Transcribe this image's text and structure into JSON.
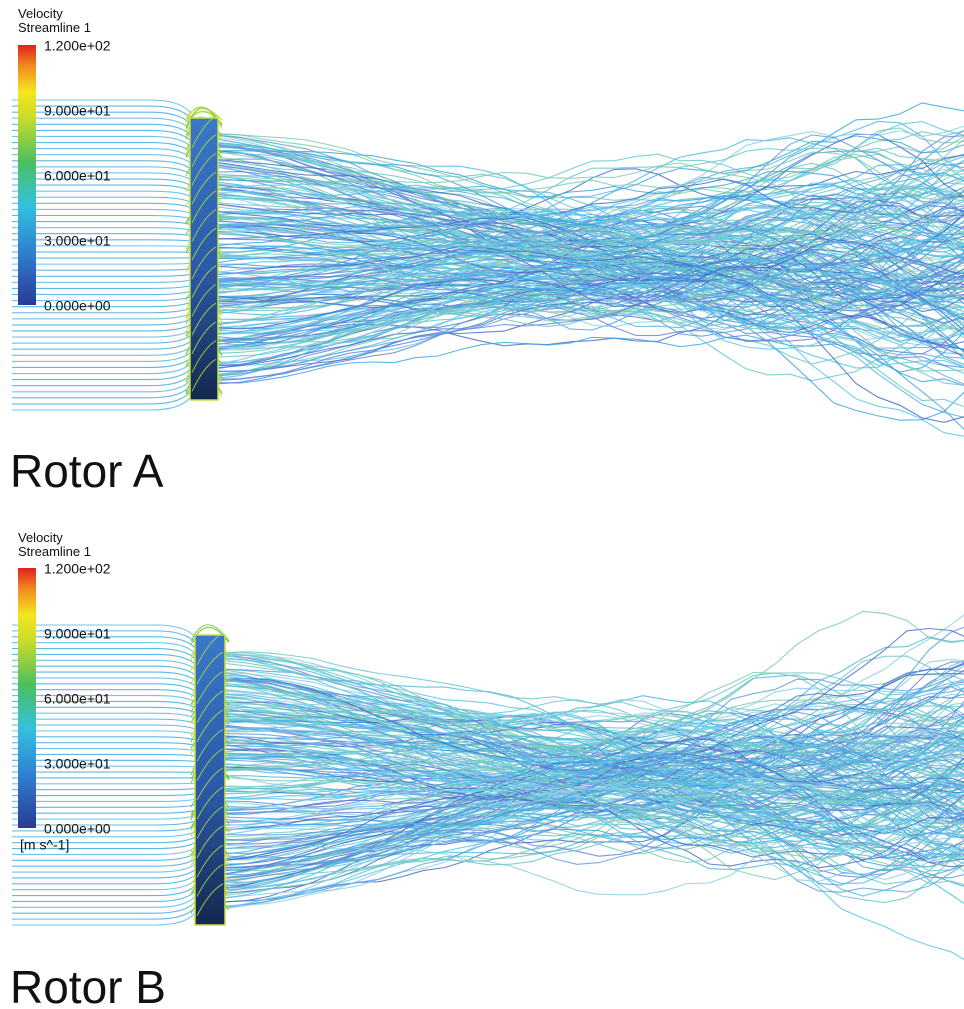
{
  "panels": [
    {
      "legend": {
        "title": "Velocity",
        "subtitle": "Streamline 1",
        "ticks": [
          "1.200e+02",
          "9.000e+01",
          "6.000e+01",
          "3.000e+01",
          "0.000e+00"
        ]
      },
      "caption": "Rotor A"
    },
    {
      "legend": {
        "title": "Velocity",
        "subtitle": "Streamline 1",
        "ticks": [
          "1.200e+02",
          "9.000e+01",
          "6.000e+01",
          "3.000e+01",
          "0.000e+00"
        ],
        "unit": "[m s^-1]"
      },
      "caption": "Rotor B"
    }
  ]
}
